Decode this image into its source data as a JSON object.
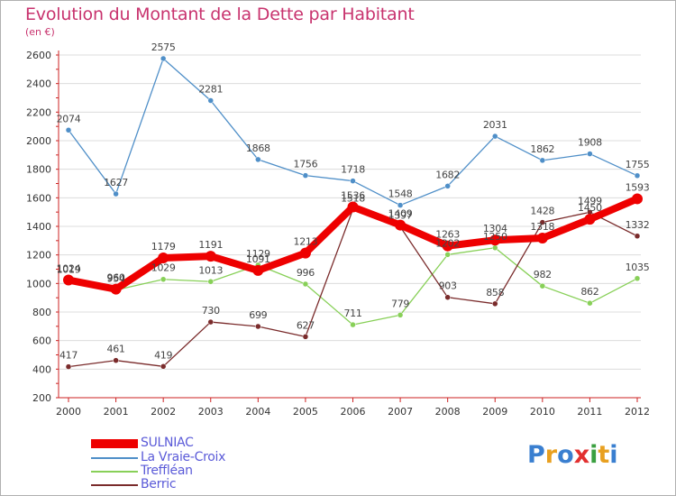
{
  "title": "Evolution du Montant de la Dette par Habitant",
  "unit_label": "(en €)",
  "logo": {
    "text": "Proxiti",
    "letters": [
      "P",
      "r",
      "o",
      "x",
      "i",
      "t",
      "i"
    ],
    "colors": [
      "#3a7fd0",
      "#e8a020",
      "#3a7fd0",
      "#e23030",
      "#3aa040",
      "#e8a020",
      "#3a7fd0"
    ]
  },
  "chart_data": {
    "type": "line",
    "title": "Evolution du Montant de la Dette par Habitant",
    "ylabel": "(en €)",
    "xlabel": "",
    "x": [
      "2000",
      "2001",
      "2002",
      "2003",
      "2004",
      "2005",
      "2006",
      "2007",
      "2008",
      "2009",
      "2010",
      "2011",
      "2012"
    ],
    "ylim": [
      200,
      2600
    ],
    "yticks": [
      200,
      400,
      600,
      800,
      1000,
      1200,
      1400,
      1600,
      1800,
      2000,
      2200,
      2400,
      2600
    ],
    "grid": true,
    "legend_position": "bottom-left",
    "series": [
      {
        "name": "SULNIAC",
        "color": "#ee0000",
        "values": [
          1024,
          960,
          1179,
          1191,
          1091,
          1213,
          1536,
          1409,
          1263,
          1304,
          1318,
          1450,
          1593
        ]
      },
      {
        "name": "La Vraie-Croix",
        "color": "#4f8fc8",
        "values": [
          2074,
          1627,
          2575,
          2281,
          1868,
          1756,
          1718,
          1548,
          1682,
          2031,
          1862,
          1908,
          1755
        ]
      },
      {
        "name": "Treffléan",
        "color": "#88d058",
        "values": [
          1019,
          954,
          1029,
          1013,
          1129,
          996,
          711,
          779,
          1202,
          1250,
          982,
          862,
          1035
        ]
      },
      {
        "name": "Berric",
        "color": "#7a2b2b",
        "values": [
          417,
          461,
          419,
          730,
          699,
          627,
          1518,
          1397,
          903,
          858,
          1428,
          1499,
          1332
        ]
      }
    ]
  }
}
